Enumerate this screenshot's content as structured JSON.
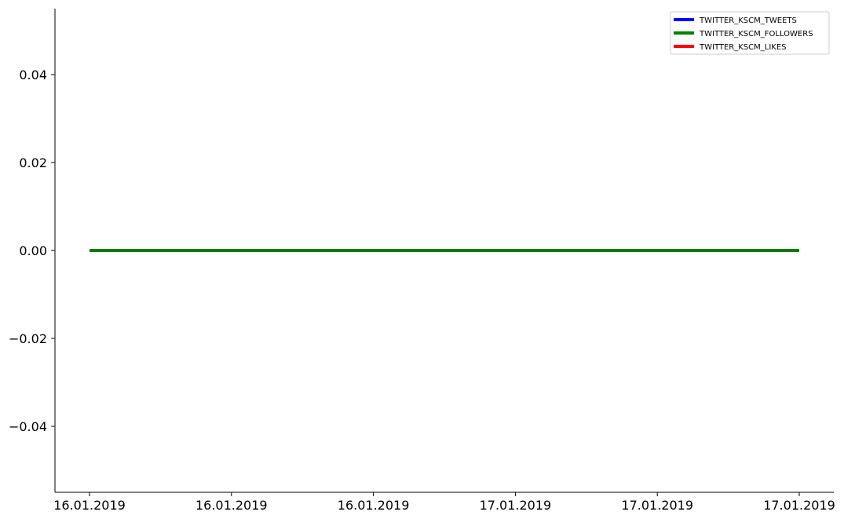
{
  "chart_data": {
    "type": "line",
    "title": "",
    "xlabel": "",
    "ylabel": "",
    "x": [
      "16.01.2019",
      "17.01.2019"
    ],
    "x_tick_labels": [
      "16.01.2019",
      "16.01.2019",
      "16.01.2019",
      "17.01.2019",
      "17.01.2019",
      "17.01.2019"
    ],
    "y_tick_labels": [
      "0.04",
      "0.02",
      "0.00",
      "−0.02",
      "−0.04"
    ],
    "y_ticks": [
      0.04,
      0.02,
      0.0,
      -0.02,
      -0.04
    ],
    "ylim": [
      -0.055,
      0.055
    ],
    "grid": false,
    "legend_position": "top-right",
    "series": [
      {
        "name": "TWITTER_KSCM_TWEETS",
        "color": "#0000ff",
        "values": [
          0,
          0
        ]
      },
      {
        "name": "TWITTER_KSCM_FOLLOWERS",
        "color": "#008000",
        "values": [
          0,
          0
        ]
      },
      {
        "name": "TWITTER_KSCM_LIKES",
        "color": "#ff0000",
        "values": [
          0,
          0
        ]
      }
    ]
  }
}
